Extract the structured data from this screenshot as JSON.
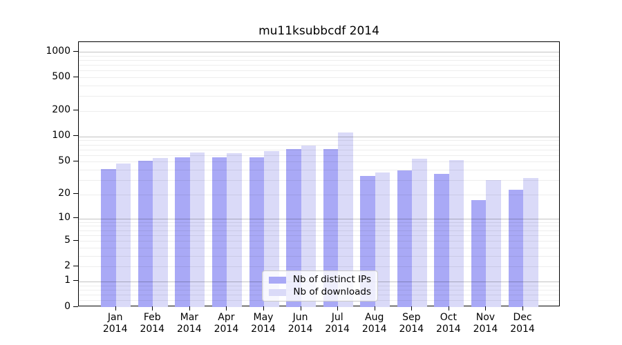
{
  "chart_data": {
    "type": "bar",
    "title": "mu11ksubbcdf 2014",
    "categories": [
      "Jan",
      "Feb",
      "Mar",
      "Apr",
      "May",
      "Jun",
      "Jul",
      "Aug",
      "Sep",
      "Oct",
      "Nov",
      "Dec"
    ],
    "x_sublabel": "2014",
    "series": [
      {
        "name": "Nb of distinct IPs",
        "color": "#a9a9f6",
        "values": [
          41,
          51,
          57,
          56,
          57,
          71,
          71,
          34,
          39,
          36,
          17,
          23
        ]
      },
      {
        "name": "Nb of downloads",
        "color": "#dadaf8",
        "values": [
          48,
          55,
          65,
          63,
          67,
          78,
          111,
          37,
          54,
          52,
          30,
          32
        ]
      }
    ],
    "y_axis": {
      "scale": "log10(1+value)",
      "tick_labels": [
        "0",
        "1",
        "2",
        "5",
        "10",
        "20",
        "50",
        "100",
        "200",
        "500",
        "1000"
      ],
      "tick_values": [
        0,
        1,
        2,
        5,
        10,
        20,
        50,
        100,
        200,
        500,
        1000
      ],
      "major_grid_values": [
        1,
        10,
        100,
        1000
      ],
      "minor_grid_values": [
        0.2,
        0.4,
        0.6,
        0.8,
        2,
        3,
        4,
        5,
        6,
        7,
        8,
        9,
        20,
        30,
        40,
        50,
        60,
        70,
        80,
        90,
        200,
        300,
        400,
        500,
        600,
        700,
        800,
        900
      ],
      "ylim": [
        0,
        1300
      ],
      "grid": true
    },
    "legend": {
      "position": "lower-center",
      "entries": [
        "Nb of distinct IPs",
        "Nb of downloads"
      ]
    },
    "colors": {
      "axis": "#000000",
      "background": "#ffffff"
    }
  }
}
